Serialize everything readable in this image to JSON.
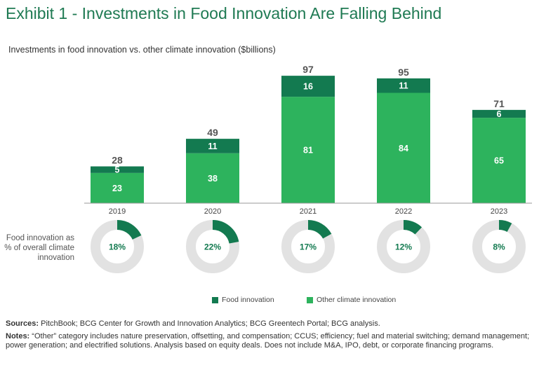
{
  "page": {
    "title": "Exhibit 1 - Investments in Food Innovation Are Falling Behind",
    "subtitle": "Investments in food innovation vs. other climate innovation ($billions)"
  },
  "colors": {
    "title": "#1f7a53",
    "food": "#137a50",
    "other": "#2db35d",
    "donut_track": "#e2e2e2",
    "axis": "#999999"
  },
  "chart_data": [
    {
      "type": "bar",
      "stacked": true,
      "title": "Investments in food innovation vs. other climate innovation ($billions)",
      "categories": [
        "2019",
        "2020",
        "2021",
        "2022",
        "2023"
      ],
      "series": [
        {
          "name": "Other climate innovation",
          "values": [
            23,
            38,
            81,
            84,
            65
          ]
        },
        {
          "name": "Food innovation",
          "values": [
            5,
            11,
            16,
            11,
            6
          ]
        }
      ],
      "totals": [
        28,
        49,
        97,
        95,
        71
      ],
      "ylim": [
        0,
        100
      ],
      "xlabel": "",
      "ylabel": ""
    },
    {
      "type": "pie",
      "variant": "donut",
      "title": "Food innovation as % of overall climate innovation",
      "categories": [
        "2019",
        "2020",
        "2021",
        "2022",
        "2023"
      ],
      "values": [
        18,
        22,
        17,
        12,
        8
      ],
      "value_labels": [
        "18%",
        "22%",
        "17%",
        "12%",
        "8%"
      ]
    }
  ],
  "donut_label": "Food innovation as % of overall climate innovation",
  "legend": {
    "food": "Food innovation",
    "other": "Other climate innovation"
  },
  "footer": {
    "sources_label": "Sources:",
    "sources_text": "PitchBook; BCG Center for Growth and Innovation Analytics; BCG Greentech Portal; BCG analysis.",
    "notes_label": "Notes:",
    "notes_text": "“Other” category includes nature preservation, offsetting, and compensation; CCUS; efficiency; fuel and material switching; demand management; power generation; and electrified solutions. Analysis based on equity deals. Does not include M&A, IPO, debt, or corporate financing programs."
  }
}
